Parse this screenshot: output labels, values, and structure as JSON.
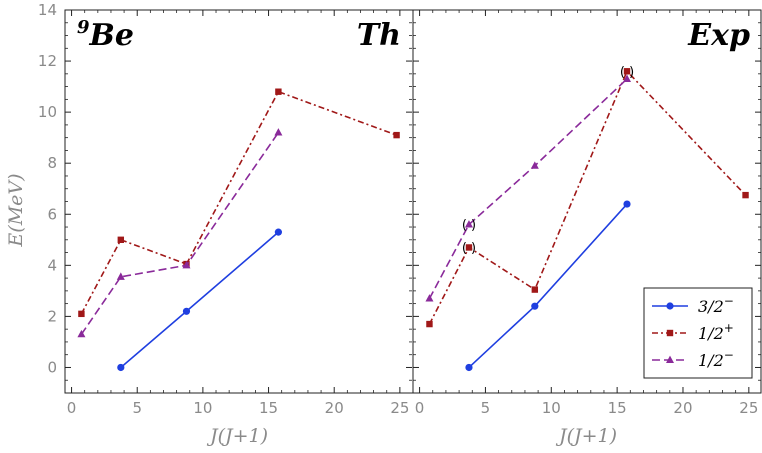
{
  "chart_data": {
    "type": "line",
    "nucleus": {
      "mass": "9",
      "symbol": "Be"
    },
    "ylabel": "E(MeV)",
    "xlabel": "J(J+1)",
    "xlim": [
      -0.5,
      26
    ],
    "ylim": [
      -1.0,
      14.0
    ],
    "yticks": [
      0,
      2,
      4,
      6,
      8,
      10,
      12,
      14
    ],
    "xticks": [
      0,
      5,
      10,
      15,
      20,
      25
    ],
    "grid": false,
    "legend_position": "bottom-right",
    "legend": [
      {
        "series": "3/2",
        "text": "3/2",
        "sup": "−"
      },
      {
        "series": "1/2+",
        "text": "1/2",
        "sup": "+"
      },
      {
        "series": "1/2-",
        "text": "1/2",
        "sup": "−"
      }
    ],
    "panels": [
      {
        "label": "Th",
        "series": [
          {
            "name": "3/2",
            "color": "#1f3fe0",
            "style": "solid",
            "marker": "circle",
            "x": [
              3.75,
              8.75,
              15.75
            ],
            "y": [
              0.0,
              2.2,
              5.3
            ]
          },
          {
            "name": "1/2+",
            "color": "#a01818",
            "style": "dashdot",
            "marker": "square",
            "x": [
              0.75,
              3.75,
              8.75,
              15.75,
              24.75
            ],
            "y": [
              2.1,
              5.0,
              4.05,
              10.8,
              9.1
            ]
          },
          {
            "name": "1/2-",
            "color": "#8a2a9a",
            "style": "dashed",
            "marker": "triangle",
            "x": [
              0.75,
              3.75,
              8.75,
              15.75
            ],
            "y": [
              1.3,
              3.55,
              4.0,
              9.2
            ]
          }
        ],
        "tentative": []
      },
      {
        "label": "Exp",
        "series": [
          {
            "name": "3/2",
            "color": "#1f3fe0",
            "style": "solid",
            "marker": "circle",
            "x": [
              3.75,
              8.75,
              15.75
            ],
            "y": [
              0.0,
              2.4,
              6.4
            ]
          },
          {
            "name": "1/2+",
            "color": "#a01818",
            "style": "dashdot",
            "marker": "square",
            "x": [
              0.75,
              3.75,
              8.75,
              15.75,
              24.75
            ],
            "y": [
              1.7,
              4.7,
              3.05,
              11.6,
              6.75
            ]
          },
          {
            "name": "1/2-",
            "color": "#8a2a9a",
            "style": "dashed",
            "marker": "triangle",
            "x": [
              0.75,
              3.75,
              8.75,
              15.75
            ],
            "y": [
              2.7,
              5.6,
              7.9,
              11.3
            ]
          }
        ],
        "tentative": [
          {
            "x": 3.75,
            "y": 5.6
          },
          {
            "x": 3.75,
            "y": 4.7
          },
          {
            "x": 15.75,
            "y": 11.6
          }
        ]
      }
    ]
  }
}
